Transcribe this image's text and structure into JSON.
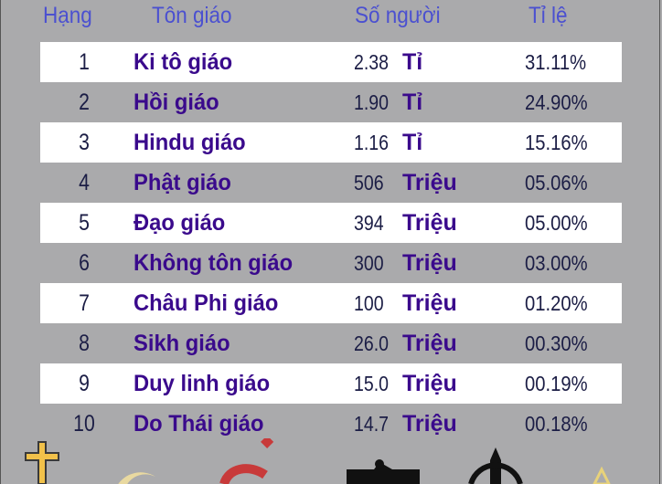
{
  "headers": {
    "rank": "Hạng",
    "religion": "Tôn giáo",
    "people": "Số người",
    "ratio": "Tỉ lệ"
  },
  "rows": [
    {
      "rank": "1",
      "name": "Ki tô giáo",
      "number": "2.38",
      "unit": "Tỉ",
      "percent": "31.11%"
    },
    {
      "rank": "2",
      "name": "Hồi giáo",
      "number": "1.90",
      "unit": "Tỉ",
      "percent": "24.90%"
    },
    {
      "rank": "3",
      "name": "Hindu giáo",
      "number": "1.16",
      "unit": "Tỉ",
      "percent": "15.16%"
    },
    {
      "rank": "4",
      "name": "Phật giáo",
      "number": "506",
      "unit": "Triệu",
      "percent": "05.06%"
    },
    {
      "rank": "5",
      "name": "Đạo giáo",
      "number": "394",
      "unit": "Triệu",
      "percent": "05.00%"
    },
    {
      "rank": "6",
      "name": "Không tôn giáo",
      "number": "300",
      "unit": "Triệu",
      "percent": "03.00%"
    },
    {
      "rank": "7",
      "name": "Châu Phi giáo",
      "number": "100",
      "unit": "Triệu",
      "percent": "01.20%"
    },
    {
      "rank": "8",
      "name": "Sikh giáo",
      "number": "26.0",
      "unit": "Triệu",
      "percent": "00.30%"
    },
    {
      "rank": "9",
      "name": "Duy linh giáo",
      "number": "15.0",
      "unit": "Triệu",
      "percent": "00.19%"
    },
    {
      "rank": "10",
      "name": "Do Thái giáo",
      "number": "14.7",
      "unit": "Triệu",
      "percent": "00.18%"
    }
  ],
  "colors": {
    "background": "#aaaaac",
    "header": "#4b50d0",
    "name": "#3a0a8c",
    "number": "#1b1d45",
    "stripe": "#ffffff"
  },
  "symbols": [
    "cross-icon",
    "crescent-icon",
    "om-icon",
    "dharma-wheel-icon",
    "khanda-icon",
    "star-icon"
  ]
}
